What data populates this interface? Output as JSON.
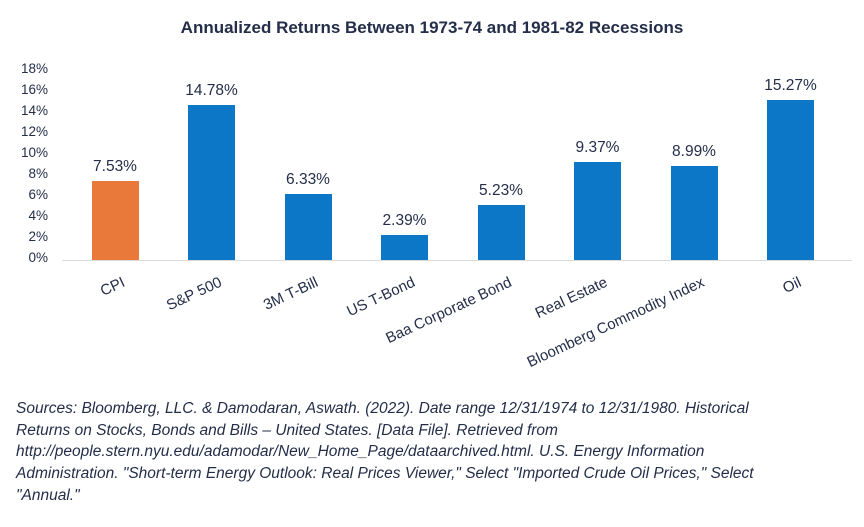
{
  "title": "Annualized Returns Between 1973-74 and 1981-82 Recessions",
  "chart_data": {
    "type": "bar",
    "title": "Annualized Returns Between 1973-74 and 1981-82 Recessions",
    "categories": [
      "CPI",
      "S&P 500",
      "3M T-Bill",
      "US T-Bond",
      "Baa Corporate Bond",
      "Real Estate",
      "Bloomberg Commodity Index",
      "Oil"
    ],
    "values": [
      7.53,
      14.78,
      6.33,
      2.39,
      5.23,
      9.37,
      8.99,
      15.27
    ],
    "value_labels": [
      "7.53%",
      "14.78%",
      "6.33%",
      "2.39%",
      "5.23%",
      "9.37%",
      "8.99%",
      "15.27%"
    ],
    "xlabel": "",
    "ylabel": "",
    "ylim": [
      0,
      18
    ],
    "ytick_labels": [
      "18%",
      "16%",
      "14%",
      "12%",
      "10%",
      "8%",
      "6%",
      "4%",
      "2%",
      "0%"
    ],
    "grid": "baseline-only",
    "legend": "none",
    "bar_color": "#0b77c6",
    "highlight_color": "#e8793a",
    "highlight_index": 0
  },
  "colors": {
    "text": "#242e49",
    "axis_line": "#d9d9d9",
    "background": "#ffffff"
  },
  "footer": {
    "lines": [
      "Sources: Bloomberg, LLC. & Damodaran, Aswath. (2022). Date range 12/31/1974 to 12/31/1980. Historical",
      "Returns on Stocks, Bonds and Bills – United States. [Data File]. Retrieved from",
      "http://people.stern.nyu.edu/adamodar/New_Home_Page/dataarchived.html. U.S. Energy Information",
      "Administration. \"Short-term Energy Outlook: Real Prices Viewer,\" Select \"Imported Crude Oil Prices,\" Select",
      "\"Annual.\""
    ]
  }
}
